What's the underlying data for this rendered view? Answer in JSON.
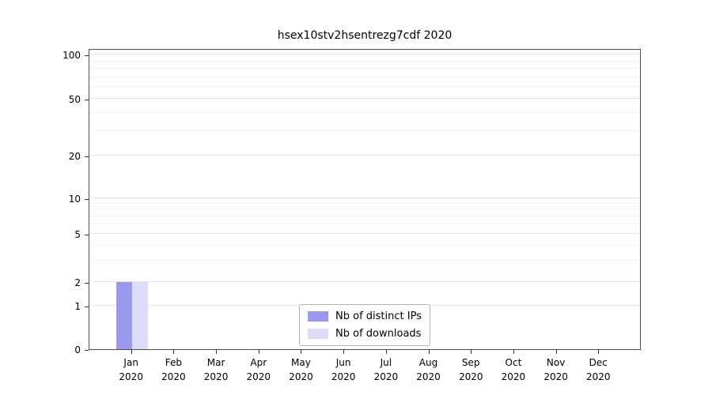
{
  "title": "hsex10stv2hsentrezg7cdf 2020",
  "chart_data": {
    "type": "bar",
    "title": "hsex10stv2hsentrezg7cdf 2020",
    "categories": [
      "Jan 2020",
      "Feb 2020",
      "Mar 2020",
      "Apr 2020",
      "May 2020",
      "Jun 2020",
      "Jul 2020",
      "Aug 2020",
      "Sep 2020",
      "Oct 2020",
      "Nov 2020",
      "Dec 2020"
    ],
    "series": [
      {
        "name": "Nb of distinct IPs",
        "color": "#9a99ee",
        "values": [
          2,
          0,
          0,
          0,
          0,
          0,
          0,
          0,
          0,
          0,
          0,
          0
        ]
      },
      {
        "name": "Nb of downloads",
        "color": "#dcdcf8",
        "values": [
          2,
          0,
          0,
          0,
          0,
          0,
          0,
          0,
          0,
          0,
          0,
          0
        ]
      }
    ],
    "yticks": [
      0,
      1,
      2,
      5,
      10,
      20,
      50,
      100
    ],
    "ylim": [
      0,
      110
    ],
    "yscale": "log-with-zero",
    "grid": true,
    "legend_position": "lower center"
  }
}
